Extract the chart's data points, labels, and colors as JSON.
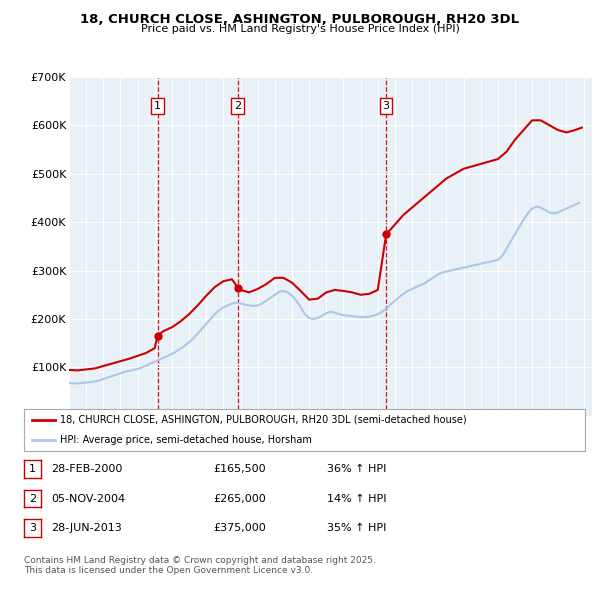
{
  "title": "18, CHURCH CLOSE, ASHINGTON, PULBOROUGH, RH20 3DL",
  "subtitle": "Price paid vs. HM Land Registry's House Price Index (HPI)",
  "red_label": "18, CHURCH CLOSE, ASHINGTON, PULBOROUGH, RH20 3DL (semi-detached house)",
  "blue_label": "HPI: Average price, semi-detached house, Horsham",
  "transactions": [
    {
      "num": 1,
      "date": "28-FEB-2000",
      "price": 165500,
      "hpi_pct": "36% ↑ HPI",
      "x": 2000.16
    },
    {
      "num": 2,
      "date": "05-NOV-2004",
      "price": 265000,
      "hpi_pct": "14% ↑ HPI",
      "x": 2004.84
    },
    {
      "num": 3,
      "date": "28-JUN-2013",
      "price": 375000,
      "hpi_pct": "35% ↑ HPI",
      "x": 2013.49
    }
  ],
  "hpi_data": {
    "x": [
      1995.0,
      1995.25,
      1995.5,
      1995.75,
      1996.0,
      1996.25,
      1996.5,
      1996.75,
      1997.0,
      1997.25,
      1997.5,
      1997.75,
      1998.0,
      1998.25,
      1998.5,
      1998.75,
      1999.0,
      1999.25,
      1999.5,
      1999.75,
      2000.0,
      2000.25,
      2000.5,
      2000.75,
      2001.0,
      2001.25,
      2001.5,
      2001.75,
      2002.0,
      2002.25,
      2002.5,
      2002.75,
      2003.0,
      2003.25,
      2003.5,
      2003.75,
      2004.0,
      2004.25,
      2004.5,
      2004.75,
      2005.0,
      2005.25,
      2005.5,
      2005.75,
      2006.0,
      2006.25,
      2006.5,
      2006.75,
      2007.0,
      2007.25,
      2007.5,
      2007.75,
      2008.0,
      2008.25,
      2008.5,
      2008.75,
      2009.0,
      2009.25,
      2009.5,
      2009.75,
      2010.0,
      2010.25,
      2010.5,
      2010.75,
      2011.0,
      2011.25,
      2011.5,
      2011.75,
      2012.0,
      2012.25,
      2012.5,
      2012.75,
      2013.0,
      2013.25,
      2013.5,
      2013.75,
      2014.0,
      2014.25,
      2014.5,
      2014.75,
      2015.0,
      2015.25,
      2015.5,
      2015.75,
      2016.0,
      2016.25,
      2016.5,
      2016.75,
      2017.0,
      2017.25,
      2017.5,
      2017.75,
      2018.0,
      2018.25,
      2018.5,
      2018.75,
      2019.0,
      2019.25,
      2019.5,
      2019.75,
      2020.0,
      2020.25,
      2020.5,
      2020.75,
      2021.0,
      2021.25,
      2021.5,
      2021.75,
      2022.0,
      2022.25,
      2022.5,
      2022.75,
      2023.0,
      2023.25,
      2023.5,
      2023.75,
      2024.0,
      2024.25,
      2024.5,
      2024.75
    ],
    "y": [
      68000,
      67000,
      67500,
      68000,
      69000,
      70000,
      71000,
      73000,
      76000,
      79000,
      82000,
      85000,
      88000,
      91000,
      93000,
      95000,
      97000,
      100000,
      104000,
      108000,
      112000,
      116000,
      120000,
      124000,
      128000,
      133000,
      139000,
      145000,
      152000,
      160000,
      170000,
      180000,
      190000,
      200000,
      210000,
      218000,
      224000,
      228000,
      232000,
      234000,
      232000,
      230000,
      228000,
      227000,
      228000,
      232000,
      238000,
      244000,
      250000,
      256000,
      258000,
      255000,
      248000,
      238000,
      225000,
      210000,
      202000,
      200000,
      202000,
      207000,
      212000,
      215000,
      213000,
      210000,
      208000,
      207000,
      206000,
      205000,
      204000,
      204000,
      205000,
      207000,
      210000,
      215000,
      222000,
      230000,
      238000,
      245000,
      252000,
      258000,
      262000,
      266000,
      270000,
      274000,
      280000,
      286000,
      292000,
      296000,
      298000,
      300000,
      302000,
      304000,
      306000,
      308000,
      310000,
      312000,
      314000,
      316000,
      318000,
      320000,
      322000,
      330000,
      345000,
      360000,
      375000,
      390000,
      405000,
      418000,
      428000,
      432000,
      430000,
      425000,
      420000,
      418000,
      420000,
      424000,
      428000,
      432000,
      436000,
      440000
    ]
  },
  "red_data": {
    "x": [
      1995.0,
      1995.5,
      1996.0,
      1996.5,
      1997.0,
      1997.5,
      1998.0,
      1998.5,
      1999.0,
      1999.5,
      2000.0,
      2000.16,
      2000.5,
      2001.0,
      2001.5,
      2002.0,
      2002.5,
      2003.0,
      2003.5,
      2004.0,
      2004.5,
      2004.84,
      2005.0,
      2005.5,
      2006.0,
      2006.5,
      2007.0,
      2007.5,
      2008.0,
      2008.5,
      2009.0,
      2009.5,
      2010.0,
      2010.5,
      2011.0,
      2011.5,
      2012.0,
      2012.5,
      2013.0,
      2013.49,
      2013.75,
      2014.0,
      2014.5,
      2015.0,
      2015.5,
      2016.0,
      2016.5,
      2017.0,
      2017.5,
      2018.0,
      2018.5,
      2019.0,
      2019.5,
      2020.0,
      2020.5,
      2021.0,
      2021.5,
      2022.0,
      2022.5,
      2023.0,
      2023.5,
      2024.0,
      2024.5,
      2024.9
    ],
    "y": [
      95000,
      94000,
      96000,
      98000,
      103000,
      108000,
      113000,
      118000,
      124000,
      130000,
      140000,
      165500,
      175000,
      183000,
      195000,
      210000,
      228000,
      248000,
      266000,
      278000,
      282000,
      265000,
      260000,
      255000,
      262000,
      272000,
      285000,
      285000,
      275000,
      258000,
      240000,
      242000,
      255000,
      260000,
      258000,
      255000,
      250000,
      252000,
      260000,
      375000,
      385000,
      395000,
      415000,
      430000,
      445000,
      460000,
      475000,
      490000,
      500000,
      510000,
      515000,
      520000,
      525000,
      530000,
      545000,
      570000,
      590000,
      610000,
      610000,
      600000,
      590000,
      585000,
      590000,
      595000
    ]
  },
  "sale_marker_color": "#cc0000",
  "hpi_line_color": "#aec6e8",
  "red_line_color": "#cc0000",
  "vline_color": "#cc0000",
  "background_chart": "#e8f0f8",
  "background_fig": "#ffffff",
  "ylim": [
    0,
    700000
  ],
  "xlim": [
    1995,
    2025.5
  ],
  "yticks": [
    0,
    100000,
    200000,
    300000,
    400000,
    500000,
    600000,
    700000
  ],
  "ytick_labels": [
    "£0",
    "£100K",
    "£200K",
    "£300K",
    "£400K",
    "£500K",
    "£600K",
    "£700K"
  ],
  "xticks": [
    1995,
    1996,
    1997,
    1998,
    1999,
    2000,
    2001,
    2002,
    2003,
    2004,
    2005,
    2006,
    2007,
    2008,
    2009,
    2010,
    2011,
    2012,
    2013,
    2014,
    2015,
    2016,
    2017,
    2018,
    2019,
    2020,
    2021,
    2022,
    2023,
    2024,
    2025
  ],
  "footer": "Contains HM Land Registry data © Crown copyright and database right 2025.\nThis data is licensed under the Open Government Licence v3.0."
}
